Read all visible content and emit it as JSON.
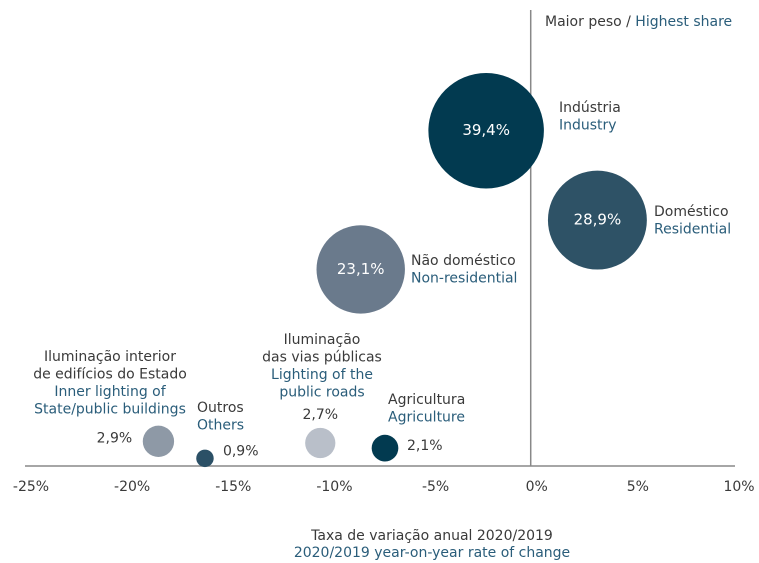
{
  "chart_data": {
    "type": "bubble",
    "title": [
      "Maior peso / ",
      "Highest share"
    ],
    "xlabel": [
      "Taxa de variação anual 2020/2019",
      "2020/2019 year-on-year rate of change"
    ],
    "xlim": [
      -25,
      10
    ],
    "xticks": [
      {
        "value": -25,
        "label": "-25%"
      },
      {
        "value": -20,
        "label": "-20%"
      },
      {
        "value": -15,
        "label": "-15%"
      },
      {
        "value": -10,
        "label": "-10%"
      },
      {
        "value": -5,
        "label": "-5%"
      },
      {
        "value": 0,
        "label": "0%"
      },
      {
        "value": 5,
        "label": "5%"
      },
      {
        "value": 10,
        "label": "10%"
      }
    ],
    "ylim": [
      0,
      53
    ],
    "points": [
      {
        "label": [
          "Indústria"
        ],
        "label_en": [
          "Industry"
        ],
        "x": -2.5,
        "value": 39.4,
        "value_label": "39,4%",
        "color": "#023a50"
      },
      {
        "label": [
          "Doméstico"
        ],
        "label_en": [
          "Residential"
        ],
        "x": 3.0,
        "value": 28.9,
        "value_label": "28,9%",
        "color": "#2e5266"
      },
      {
        "label": [
          "Não doméstico"
        ],
        "label_en": [
          "Non-residential"
        ],
        "x": -8.7,
        "value": 23.1,
        "value_label": "23,1%",
        "color": "#6a7a8c"
      },
      {
        "label": [
          "Iluminação interior",
          "de edifícios do Estado"
        ],
        "label_en": [
          "Inner lighting of",
          "State/public buildings"
        ],
        "x": -18.7,
        "value": 2.9,
        "value_label": "2,9%",
        "color": "#8e99a6"
      },
      {
        "label": [
          "Outros"
        ],
        "label_en": [
          "Others"
        ],
        "x": -16.4,
        "value": 0.9,
        "value_label": "0,9%",
        "color": "#2b5066"
      },
      {
        "label": [
          "Iluminação",
          "das vias públicas"
        ],
        "label_en": [
          "Lighting of the",
          "public roads"
        ],
        "x": -10.7,
        "value": 2.7,
        "value_label": "2,7%",
        "color": "#b9bfc9"
      },
      {
        "label": [
          "Agricultura"
        ],
        "label_en": [
          "Agriculture"
        ],
        "x": -7.5,
        "value": 2.1,
        "value_label": "2,1%",
        "color": "#023a50"
      }
    ]
  }
}
